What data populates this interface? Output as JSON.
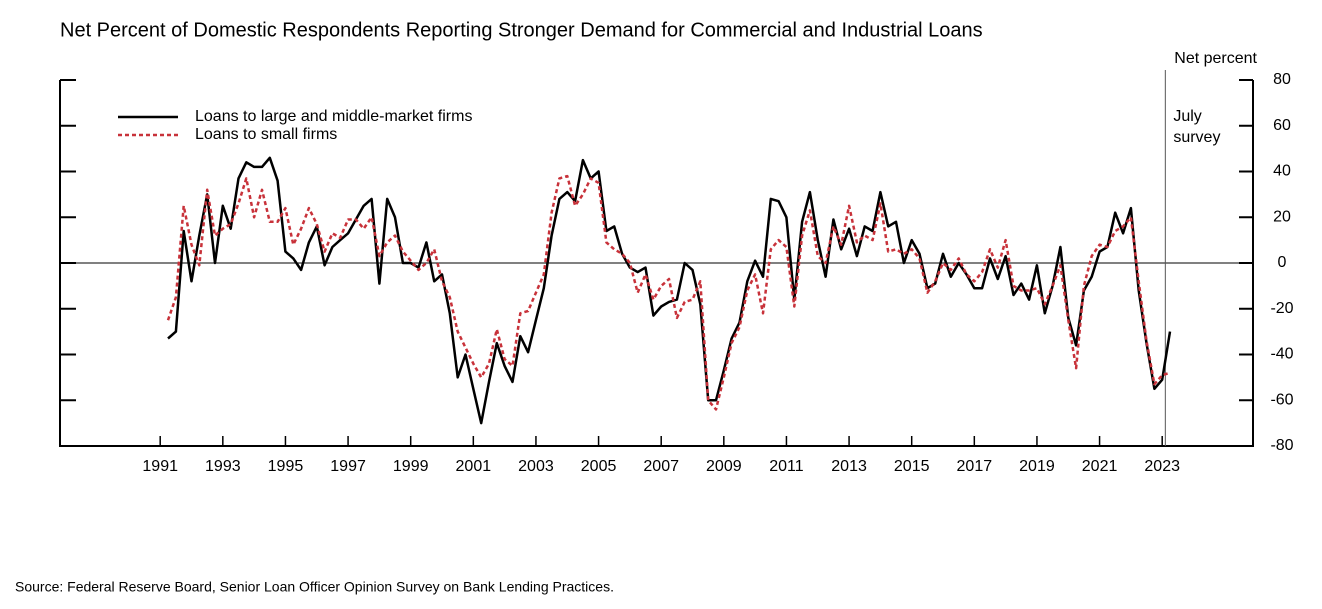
{
  "chart_data": {
    "type": "line",
    "title": "Net Percent of Domestic Respondents Reporting Stronger Demand for Commercial and Industrial Loans",
    "y_axis_label": "Net percent",
    "source": "Source:  Federal Reserve Board, Senior Loan Officer Opinion Survey on Bank Lending Practices.",
    "annotation": {
      "lines": [
        "July",
        "survey"
      ],
      "x": 2023.1
    },
    "legend": "upper left",
    "xlim": [
      1987.8,
      2025.9
    ],
    "xticks": [
      1991,
      1993,
      1995,
      1997,
      1999,
      2001,
      2003,
      2005,
      2007,
      2009,
      2011,
      2013,
      2015,
      2017,
      2019,
      2021,
      2023
    ],
    "ylim": [
      -80,
      80
    ],
    "yticks": [
      -80,
      -60,
      -40,
      -20,
      0,
      20,
      40,
      60,
      80
    ],
    "x": [
      1991.25,
      1991.5,
      1991.75,
      1992,
      1992.25,
      1992.5,
      1992.75,
      1993,
      1993.25,
      1993.5,
      1993.75,
      1994,
      1994.25,
      1994.5,
      1994.75,
      1995,
      1995.25,
      1995.5,
      1995.75,
      1996,
      1996.25,
      1996.5,
      1996.75,
      1997,
      1997.25,
      1997.5,
      1997.75,
      1998,
      1998.25,
      1998.5,
      1998.75,
      1999,
      1999.25,
      1999.5,
      1999.75,
      2000,
      2000.25,
      2000.5,
      2000.75,
      2001,
      2001.25,
      2001.5,
      2001.75,
      2002,
      2002.25,
      2002.5,
      2002.75,
      2003,
      2003.25,
      2003.5,
      2003.75,
      2004,
      2004.25,
      2004.5,
      2004.75,
      2005,
      2005.25,
      2005.5,
      2005.75,
      2006,
      2006.25,
      2006.5,
      2006.75,
      2007,
      2007.25,
      2007.5,
      2007.75,
      2008,
      2008.25,
      2008.5,
      2008.75,
      2009,
      2009.25,
      2009.5,
      2009.75,
      2010,
      2010.25,
      2010.5,
      2010.75,
      2011,
      2011.25,
      2011.5,
      2011.75,
      2012,
      2012.25,
      2012.5,
      2012.75,
      2013,
      2013.25,
      2013.5,
      2013.75,
      2014,
      2014.25,
      2014.5,
      2014.75,
      2015,
      2015.25,
      2015.5,
      2015.75,
      2016,
      2016.25,
      2016.5,
      2016.75,
      2017,
      2017.25,
      2017.5,
      2017.75,
      2018,
      2018.25,
      2018.5,
      2018.75,
      2019,
      2019.25,
      2019.5,
      2019.75,
      2020,
      2020.25,
      2020.5,
      2020.75,
      2021,
      2021.25,
      2021.5,
      2021.75,
      2022,
      2022.25,
      2022.5,
      2022.75,
      2023,
      2023.25
    ],
    "series": [
      {
        "name": "Loans to large and middle-market firms",
        "color": "#000000",
        "dash": false,
        "values": [
          -33,
          -30,
          14,
          -8,
          12,
          30,
          0,
          25,
          15,
          37,
          44,
          42,
          42,
          46,
          36,
          5,
          2,
          -3,
          9,
          16,
          -1,
          7,
          10,
          13,
          19,
          25,
          28,
          -9,
          28,
          20,
          0,
          0,
          -2,
          9,
          -8,
          -5,
          -22,
          -50,
          -40,
          -55,
          -70,
          -52,
          -35,
          -45,
          -52,
          -32,
          -39,
          -25,
          -11,
          12,
          28,
          31,
          27,
          45,
          37,
          40,
          14,
          16,
          4,
          -2,
          -4,
          -2,
          -23,
          -19,
          -17,
          -16,
          0,
          -3,
          -18,
          -60,
          -60,
          -47,
          -33,
          -26,
          -8,
          1,
          -6,
          28,
          27,
          20,
          -16,
          18,
          31,
          10,
          -6,
          19,
          6,
          15,
          3,
          16,
          14,
          31,
          16,
          18,
          0,
          10,
          4,
          -11,
          -9,
          4,
          -6,
          0,
          -5,
          -11,
          -11,
          2,
          -7,
          3,
          -14,
          -9,
          -16,
          -1,
          -22,
          -10,
          7,
          -24,
          -36,
          -12,
          -6,
          5,
          7,
          22,
          13,
          24,
          -12,
          -35,
          -55,
          -51,
          -30
        ]
      },
      {
        "name": "Loans to small firms",
        "color": "#c8323a",
        "dash": true,
        "values": [
          -25,
          -15,
          25,
          8,
          -1,
          32,
          12,
          15,
          17,
          26,
          37,
          20,
          32,
          18,
          18,
          24,
          8,
          15,
          24,
          17,
          5,
          13,
          11,
          19,
          19,
          15,
          20,
          3,
          9,
          12,
          5,
          1,
          -3,
          0,
          6,
          -8,
          -15,
          -30,
          -37,
          -44,
          -50,
          -44,
          -29,
          -42,
          -45,
          -22,
          -21,
          -13,
          -5,
          22,
          37,
          38,
          25,
          30,
          37,
          35,
          9,
          6,
          4,
          0,
          -13,
          -5,
          -16,
          -10,
          -7,
          -24,
          -17,
          -16,
          -8,
          -60,
          -64,
          -50,
          -35,
          -28,
          -12,
          -5,
          -22,
          6,
          10,
          7,
          -19,
          12,
          23,
          3,
          0,
          16,
          8,
          25,
          9,
          12,
          10,
          26,
          5,
          6,
          4,
          6,
          2,
          -13,
          -8,
          0,
          -3,
          2,
          -5,
          -8,
          -4,
          6,
          -2,
          10,
          -10,
          -12,
          -12,
          -11,
          -18,
          -10,
          -1,
          -25,
          -46,
          -10,
          3,
          8,
          7,
          14,
          16,
          20,
          -8,
          -34,
          -53,
          -49,
          -48
        ]
      }
    ]
  }
}
